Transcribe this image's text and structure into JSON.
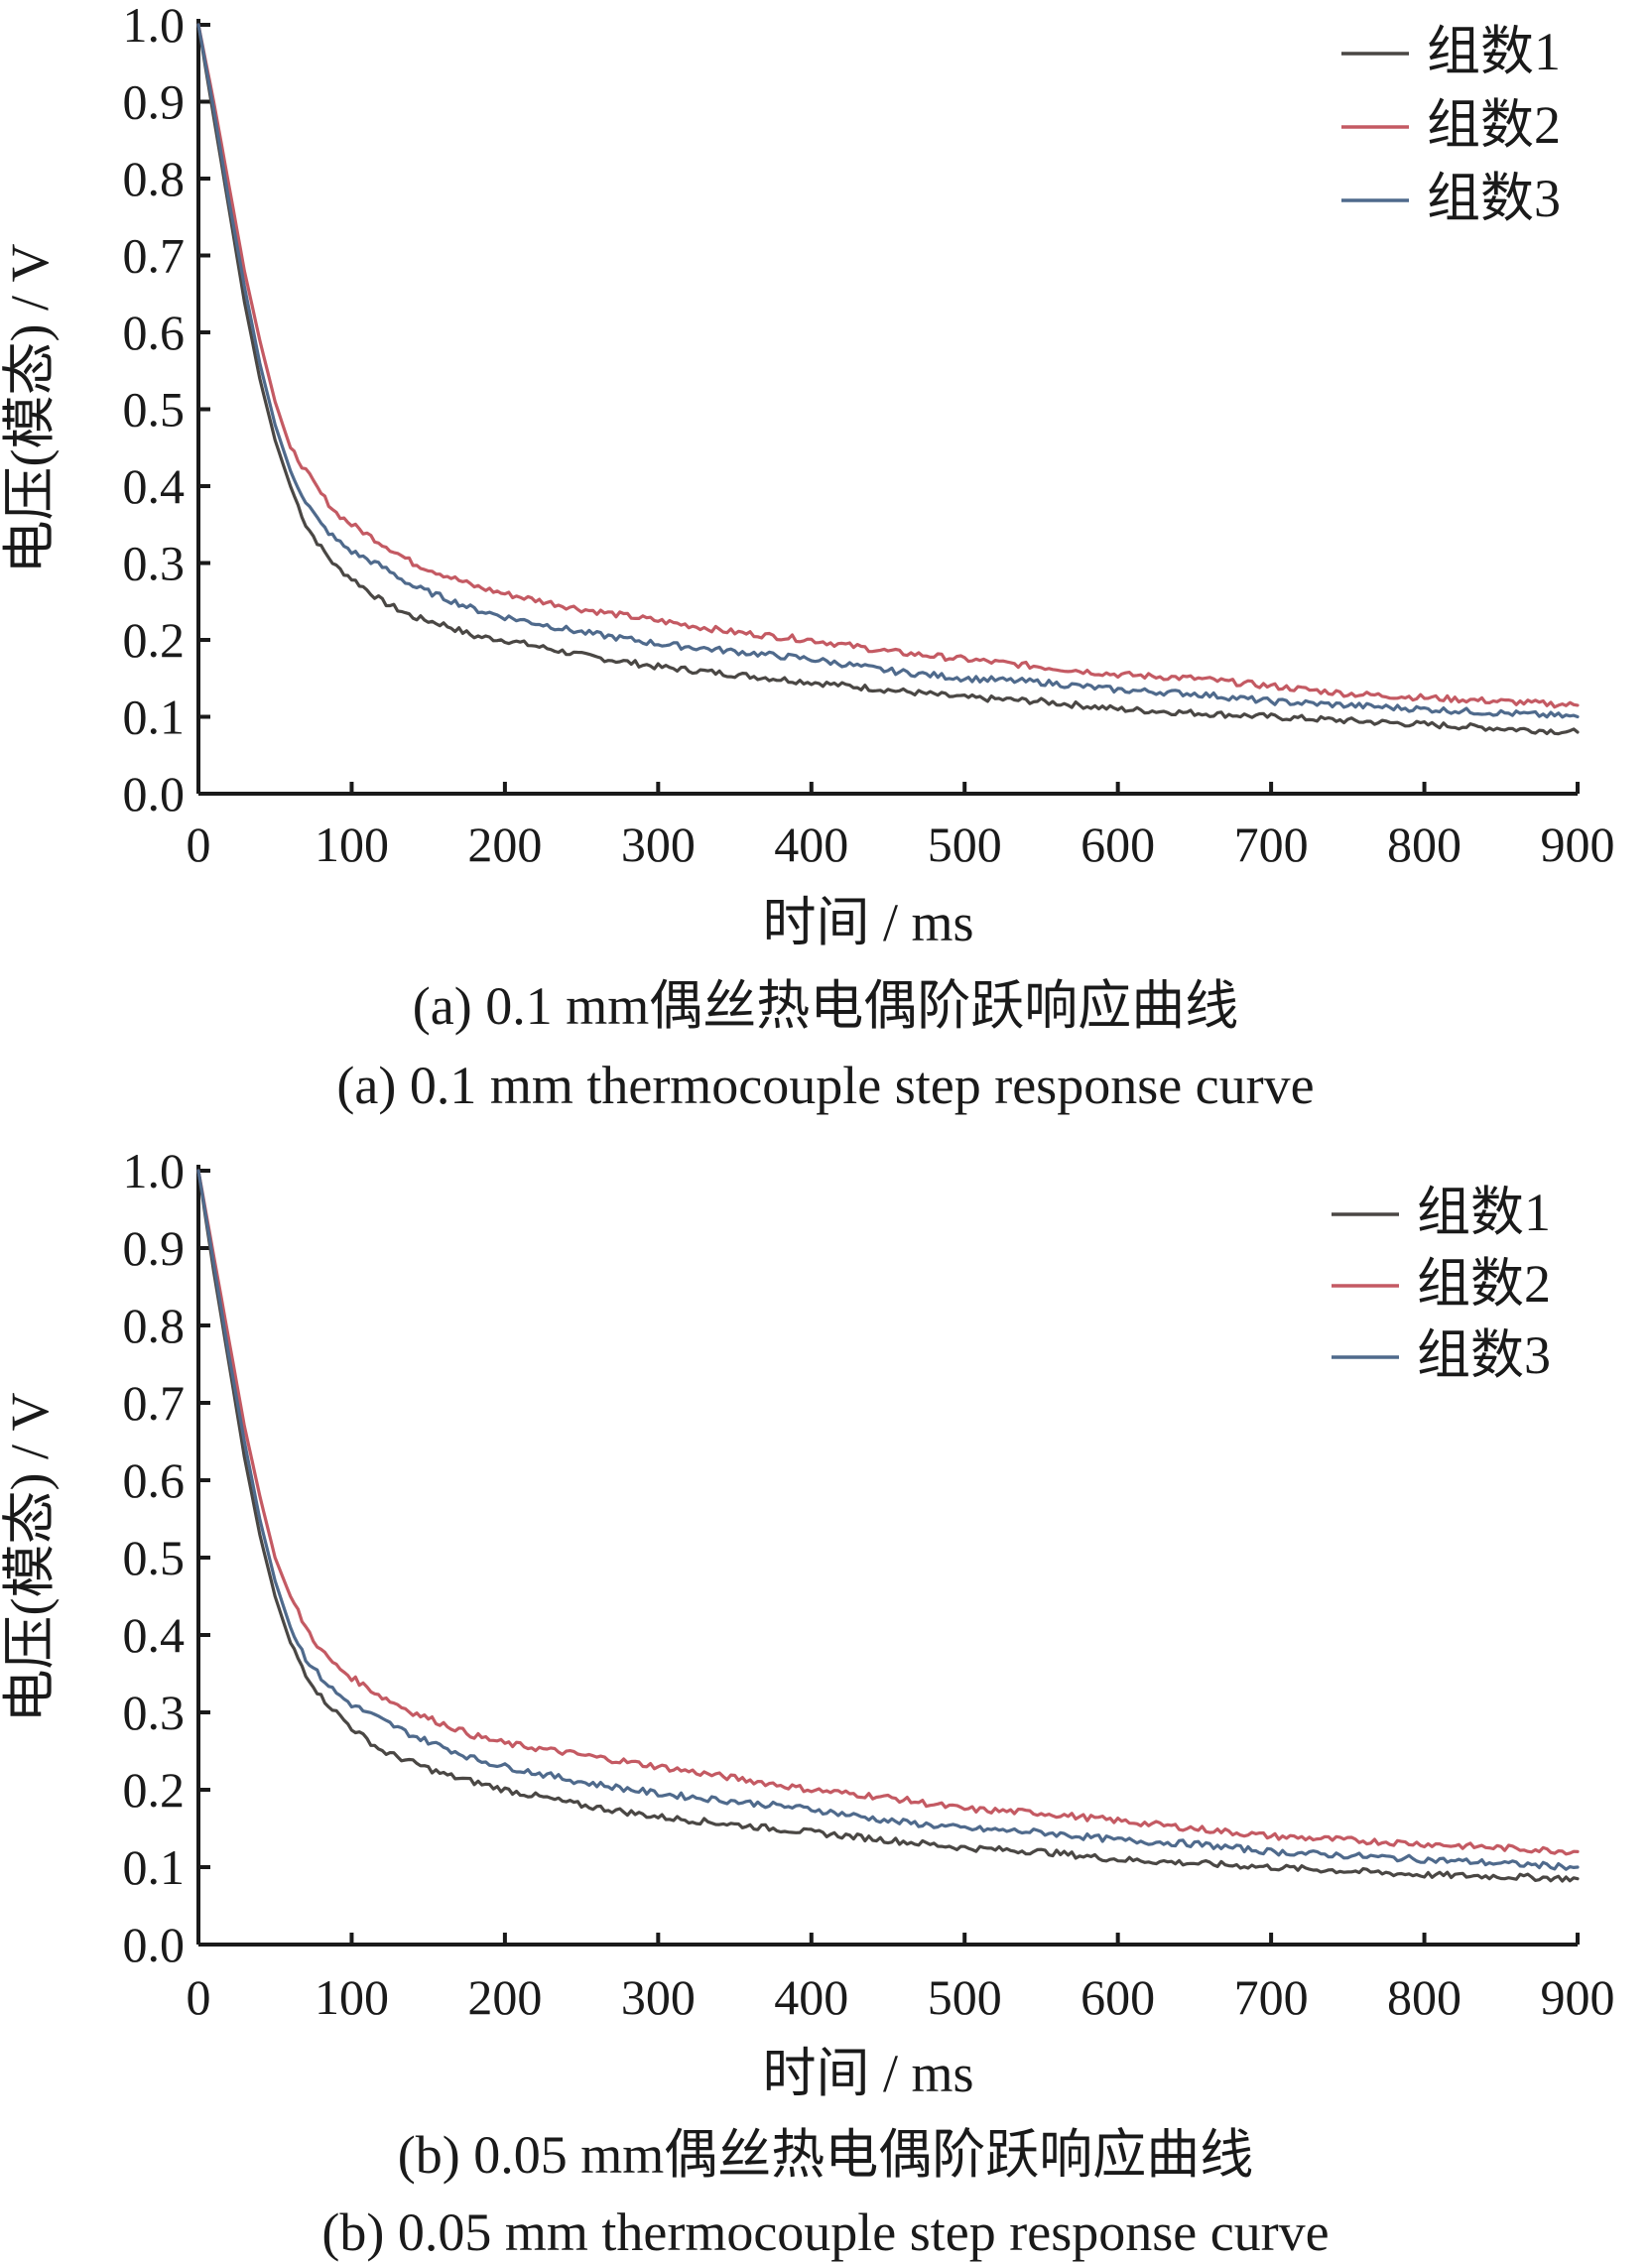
{
  "chart_data": [
    {
      "type": "line",
      "title": "(a) 0.1 mm偶丝热电偶阶跃响应曲线",
      "subtitle": "(a) 0.1 mm thermocouple step response curve",
      "xlabel": "时间 / ms",
      "ylabel": "电压(模态) / V",
      "xlim": [
        0,
        900
      ],
      "ylim": [
        0.0,
        1.0
      ],
      "xticks": [
        "0",
        "100",
        "200",
        "300",
        "400",
        "500",
        "600",
        "700",
        "800",
        "900"
      ],
      "yticks": [
        "0.0",
        "0.1",
        "0.2",
        "0.3",
        "0.4",
        "0.5",
        "0.6",
        "0.7",
        "0.8",
        "0.9",
        "1.0"
      ],
      "grid": false,
      "legend_position": "top-right",
      "series": [
        {
          "name": "组数1",
          "color": "#4a4744",
          "x": [
            0,
            10,
            20,
            30,
            40,
            50,
            60,
            70,
            80,
            90,
            100,
            120,
            140,
            160,
            180,
            200,
            250,
            300,
            350,
            400,
            450,
            500,
            550,
            600,
            650,
            700,
            750,
            800,
            850,
            900
          ],
          "y": [
            1.0,
            0.88,
            0.76,
            0.64,
            0.54,
            0.46,
            0.4,
            0.35,
            0.32,
            0.295,
            0.28,
            0.25,
            0.23,
            0.22,
            0.205,
            0.2,
            0.18,
            0.165,
            0.155,
            0.145,
            0.135,
            0.125,
            0.12,
            0.11,
            0.105,
            0.1,
            0.095,
            0.09,
            0.085,
            0.08
          ]
        },
        {
          "name": "组数2",
          "color": "#c45a63",
          "x": [
            0,
            10,
            20,
            30,
            40,
            50,
            60,
            70,
            80,
            90,
            100,
            120,
            140,
            160,
            180,
            200,
            250,
            300,
            350,
            400,
            450,
            500,
            550,
            600,
            650,
            700,
            750,
            800,
            850,
            900
          ],
          "y": [
            1.0,
            0.9,
            0.79,
            0.68,
            0.59,
            0.51,
            0.45,
            0.42,
            0.39,
            0.365,
            0.35,
            0.325,
            0.3,
            0.285,
            0.27,
            0.26,
            0.24,
            0.225,
            0.21,
            0.2,
            0.185,
            0.175,
            0.165,
            0.155,
            0.15,
            0.14,
            0.13,
            0.125,
            0.12,
            0.115
          ]
        },
        {
          "name": "组数3",
          "color": "#4f6a8c",
          "x": [
            0,
            10,
            20,
            30,
            40,
            50,
            60,
            70,
            80,
            90,
            100,
            120,
            140,
            160,
            180,
            200,
            250,
            300,
            350,
            400,
            450,
            500,
            550,
            600,
            650,
            700,
            750,
            800,
            850,
            900
          ],
          "y": [
            1.0,
            0.89,
            0.77,
            0.66,
            0.56,
            0.48,
            0.42,
            0.38,
            0.35,
            0.33,
            0.315,
            0.295,
            0.27,
            0.255,
            0.24,
            0.23,
            0.21,
            0.195,
            0.185,
            0.175,
            0.16,
            0.15,
            0.145,
            0.135,
            0.13,
            0.12,
            0.115,
            0.11,
            0.105,
            0.1
          ]
        }
      ]
    },
    {
      "type": "line",
      "title": "(b) 0.05 mm偶丝热电偶阶跃响应曲线",
      "subtitle": "(b) 0.05 mm thermocouple step response curve",
      "xlabel": "时间 / ms",
      "ylabel": "电压(模态) / V",
      "xlim": [
        0,
        900
      ],
      "ylim": [
        0.0,
        1.0
      ],
      "xticks": [
        "0",
        "100",
        "200",
        "300",
        "400",
        "500",
        "600",
        "700",
        "800",
        "900"
      ],
      "yticks": [
        "0.0",
        "0.1",
        "0.2",
        "0.3",
        "0.4",
        "0.5",
        "0.6",
        "0.7",
        "0.8",
        "0.9",
        "1.0"
      ],
      "grid": false,
      "legend_position": "top-right",
      "series": [
        {
          "name": "组数1",
          "color": "#4a4744",
          "x": [
            0,
            10,
            20,
            30,
            40,
            50,
            60,
            70,
            80,
            90,
            100,
            120,
            140,
            160,
            180,
            200,
            250,
            300,
            350,
            400,
            450,
            500,
            550,
            600,
            650,
            700,
            750,
            800,
            850,
            900
          ],
          "y": [
            1.0,
            0.87,
            0.75,
            0.63,
            0.53,
            0.45,
            0.39,
            0.35,
            0.32,
            0.3,
            0.28,
            0.25,
            0.235,
            0.22,
            0.21,
            0.2,
            0.18,
            0.165,
            0.155,
            0.145,
            0.135,
            0.125,
            0.12,
            0.11,
            0.105,
            0.1,
            0.095,
            0.09,
            0.088,
            0.085
          ]
        },
        {
          "name": "组数2",
          "color": "#c45a63",
          "x": [
            0,
            10,
            20,
            30,
            40,
            50,
            60,
            70,
            80,
            90,
            100,
            120,
            140,
            160,
            180,
            200,
            250,
            300,
            350,
            400,
            450,
            500,
            550,
            600,
            650,
            700,
            750,
            800,
            850,
            900
          ],
          "y": [
            1.0,
            0.89,
            0.78,
            0.67,
            0.58,
            0.5,
            0.45,
            0.41,
            0.38,
            0.36,
            0.345,
            0.32,
            0.3,
            0.285,
            0.27,
            0.26,
            0.245,
            0.23,
            0.215,
            0.2,
            0.19,
            0.175,
            0.17,
            0.16,
            0.15,
            0.14,
            0.135,
            0.13,
            0.125,
            0.12
          ]
        },
        {
          "name": "组数3",
          "color": "#4f6a8c",
          "x": [
            0,
            10,
            20,
            30,
            40,
            50,
            60,
            70,
            80,
            90,
            100,
            120,
            140,
            160,
            180,
            200,
            250,
            300,
            350,
            400,
            450,
            500,
            550,
            600,
            650,
            700,
            750,
            800,
            850,
            900
          ],
          "y": [
            1.0,
            0.88,
            0.76,
            0.65,
            0.55,
            0.47,
            0.41,
            0.37,
            0.345,
            0.325,
            0.31,
            0.29,
            0.27,
            0.255,
            0.24,
            0.23,
            0.21,
            0.195,
            0.185,
            0.175,
            0.16,
            0.15,
            0.145,
            0.135,
            0.13,
            0.12,
            0.115,
            0.11,
            0.105,
            0.1
          ]
        }
      ]
    }
  ]
}
